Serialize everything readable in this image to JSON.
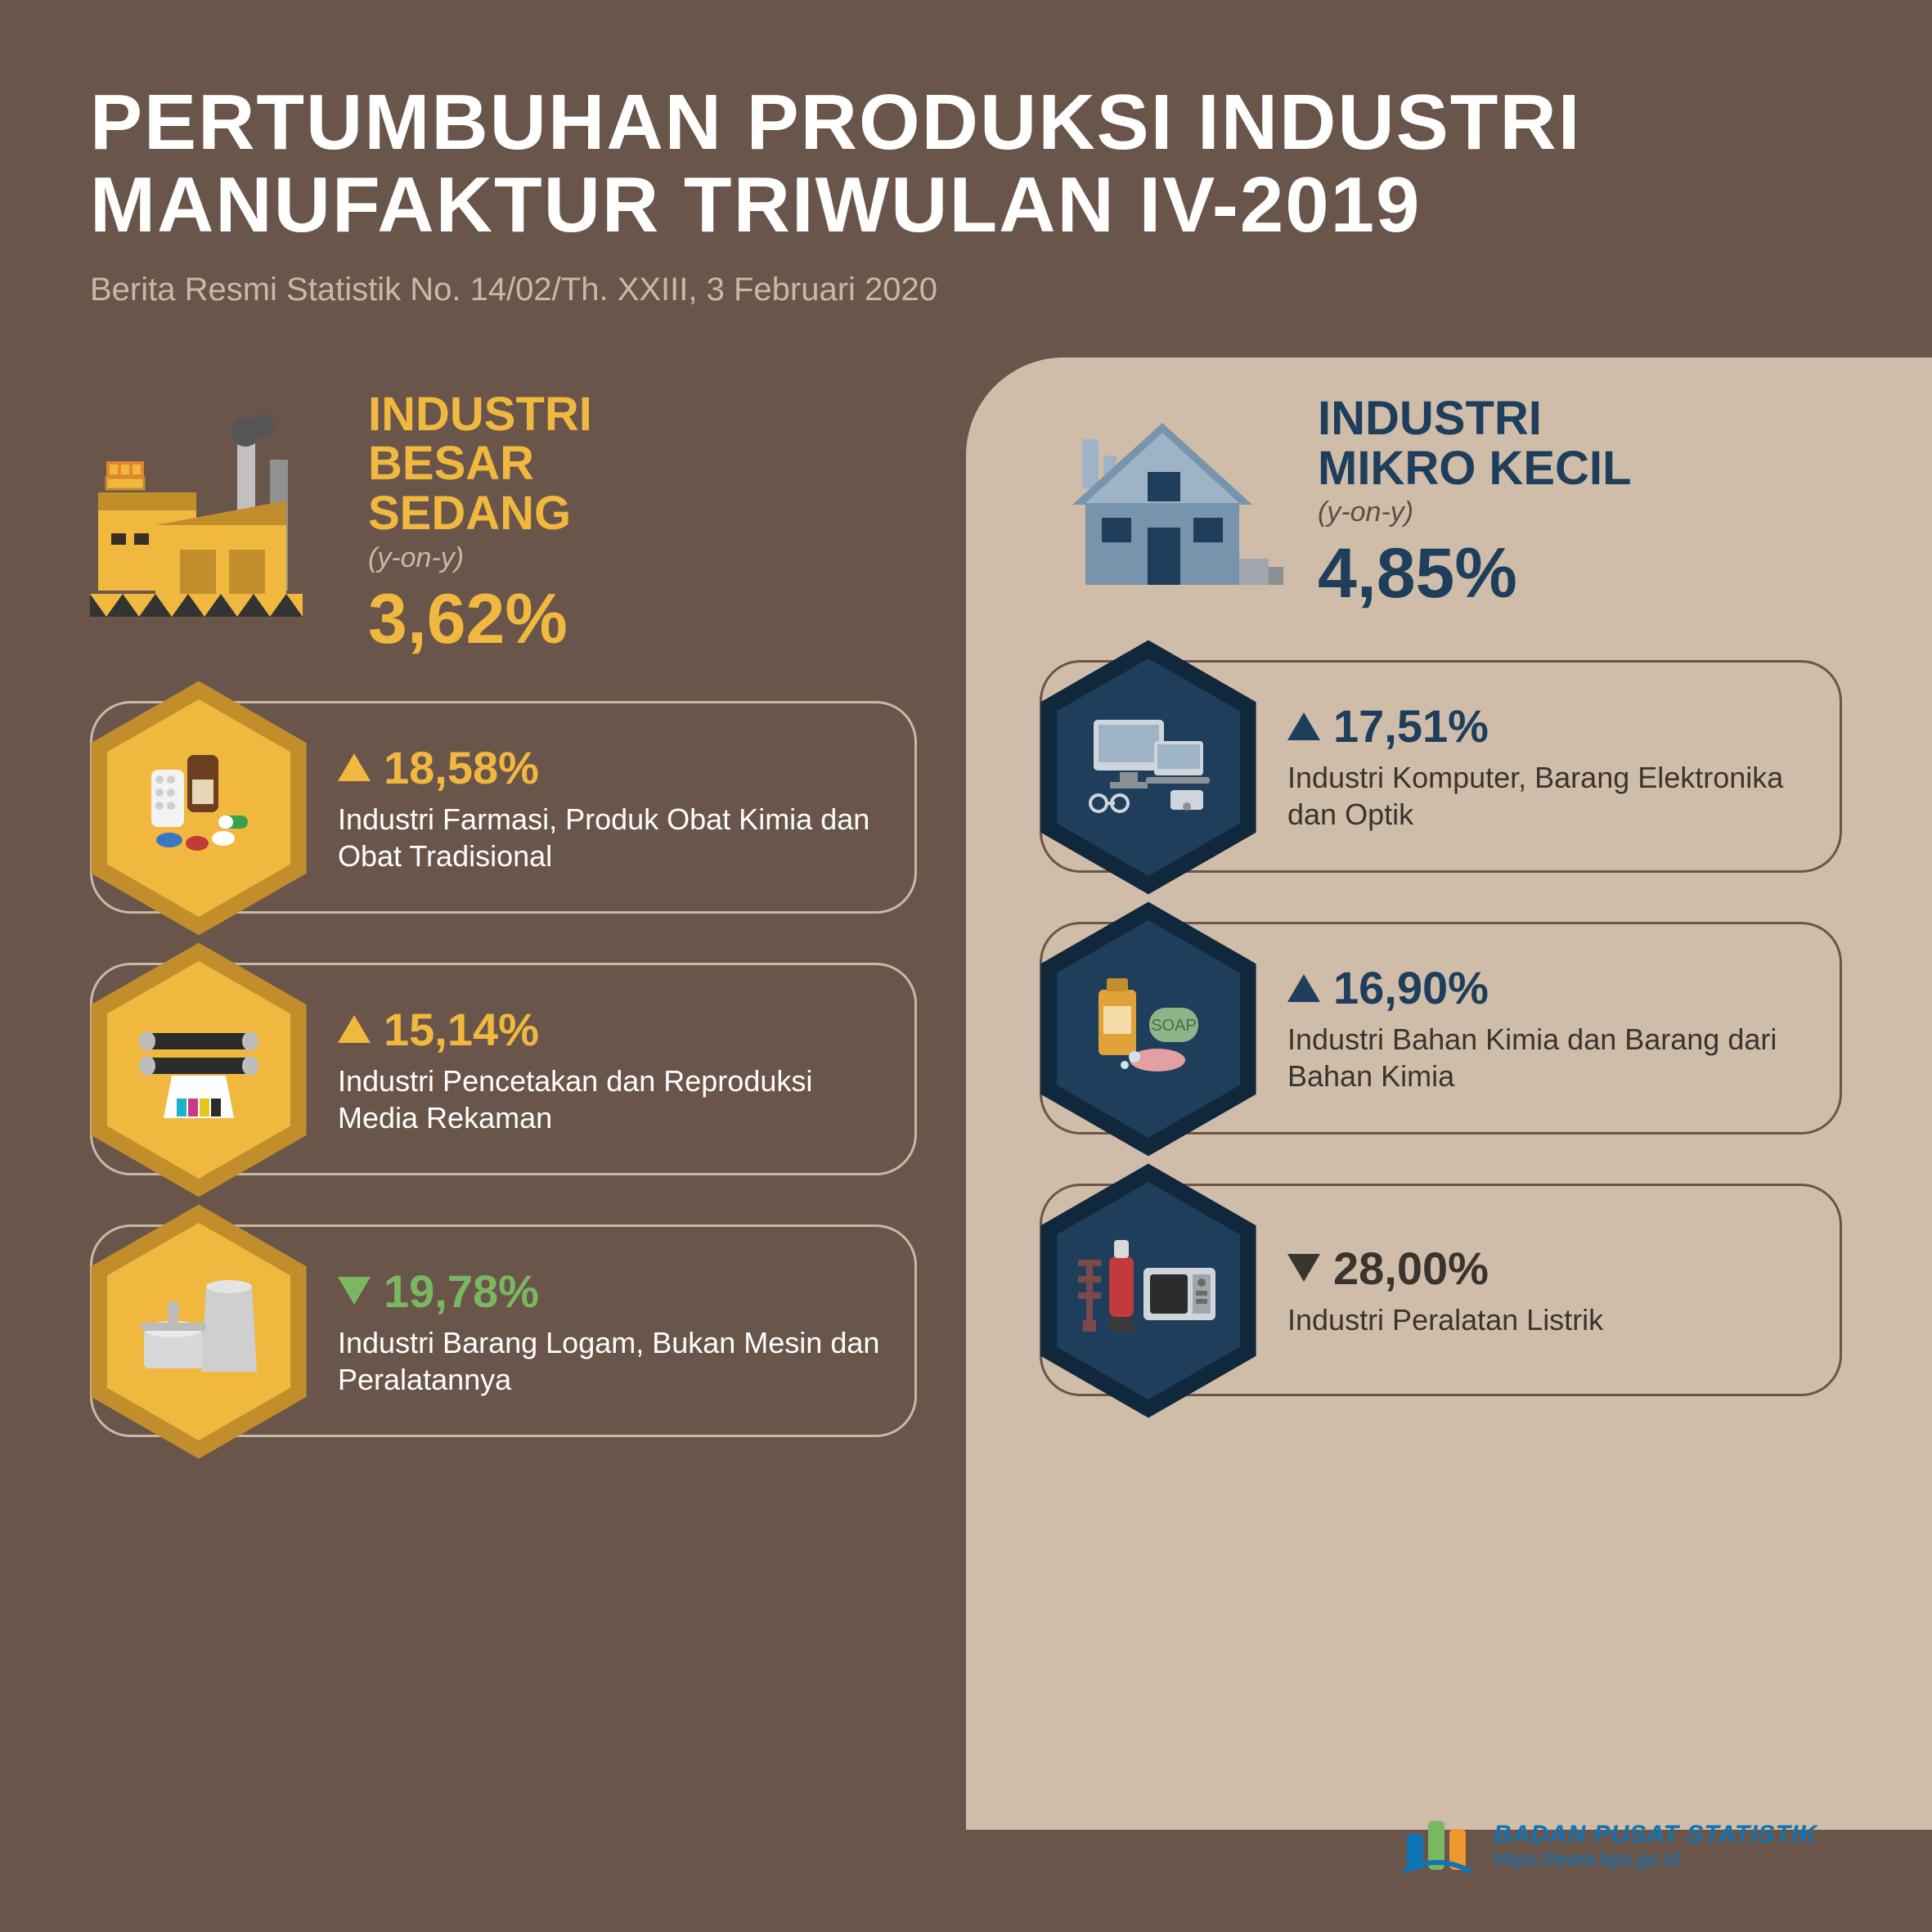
{
  "header": {
    "title": "PERTUMBUHAN PRODUKSI INDUSTRI MANUFAKTUR TRIWULAN IV-2019",
    "subtitle": "Berita Resmi Statistik No. 14/02/Th. XXIII, 3 Februari 2020"
  },
  "colors": {
    "page_bg": "#6a554b",
    "light_panel": "#cfbda9",
    "left_accent": "#f0b83f",
    "right_accent": "#1e3e5c",
    "up_green": "#7bb661",
    "down_dark": "#3a342e",
    "white": "#ffffff",
    "left_hex_outer": "#c28e2c",
    "left_hex_inner": "#f0b83f",
    "right_hex_outer": "#11273c",
    "right_hex_inner": "#1e3e5c"
  },
  "left": {
    "label": "INDUSTRI\nBESAR\nSEDANG",
    "yoy": "(y-on-y)",
    "pct": "3,62%",
    "items": [
      {
        "icon": "pharmacy-icon",
        "direction": "up",
        "pct": "18,58%",
        "pct_color": "#f0b83f",
        "desc": "Industri Farmasi, Produk Obat Kimia dan Obat Tradisional"
      },
      {
        "icon": "printing-icon",
        "direction": "up",
        "pct": "15,14%",
        "pct_color": "#f0b83f",
        "desc": "Industri Pencetakan dan Reproduksi Media Rekaman"
      },
      {
        "icon": "metalware-icon",
        "direction": "down",
        "pct": "19,78%",
        "pct_color": "#7bb661",
        "desc": "Industri Barang Logam, Bukan Mesin dan Peralatannya"
      }
    ]
  },
  "right": {
    "label": "INDUSTRI\nMIKRO KECIL",
    "yoy": "(y-on-y)",
    "pct": "4,85%",
    "items": [
      {
        "icon": "computer-icon",
        "direction": "up",
        "pct": "17,51%",
        "pct_color": "#1e3e5c",
        "desc": "Industri Komputer, Barang Elektronika dan Optik"
      },
      {
        "icon": "chemical-icon",
        "direction": "up",
        "pct": "16,90%",
        "pct_color": "#1e3e5c",
        "desc": "Industri Bahan Kimia dan Barang dari Bahan Kimia"
      },
      {
        "icon": "electrical-icon",
        "direction": "down",
        "pct": "28,00%",
        "pct_color": "#3a342e",
        "desc": "Industri Peralatan Listrik"
      }
    ]
  },
  "footer": {
    "org": "BADAN PUSAT STATISTIK",
    "url": "https://www.bps.go.id"
  }
}
